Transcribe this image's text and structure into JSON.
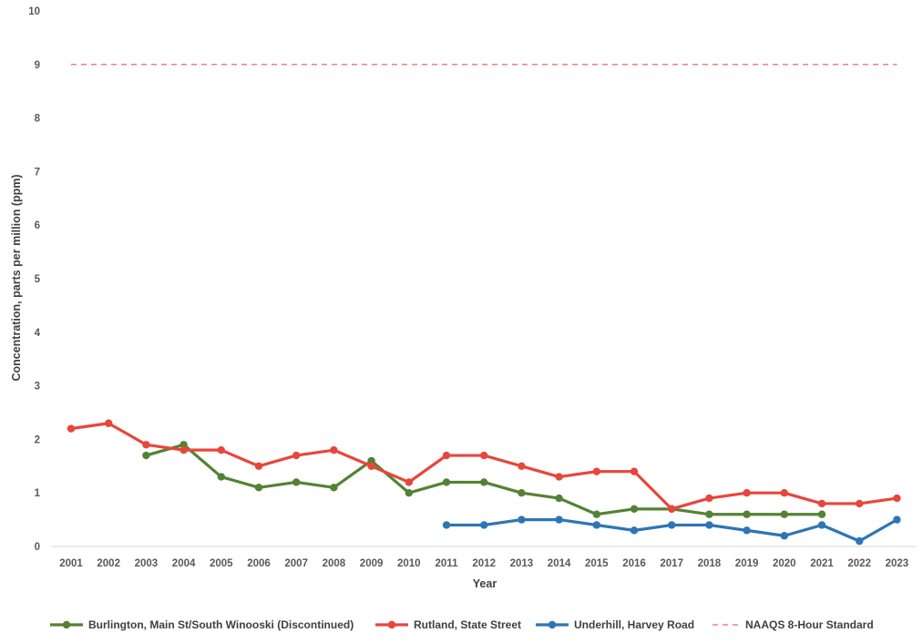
{
  "chart_data": {
    "type": "line",
    "title": "",
    "xlabel": "Year",
    "ylabel": "Concentration, parts per million (ppm)",
    "ylim": [
      0,
      10
    ],
    "y_ticks": [
      "0",
      "1",
      "2",
      "3",
      "4",
      "5",
      "6",
      "7",
      "8",
      "9",
      "10"
    ],
    "categories": [
      "2001",
      "2002",
      "2003",
      "2004",
      "2005",
      "2006",
      "2007",
      "2008",
      "2009",
      "2010",
      "2011",
      "2012",
      "2013",
      "2014",
      "2015",
      "2016",
      "2017",
      "2018",
      "2019",
      "2020",
      "2021",
      "2022",
      "2023"
    ],
    "grid": false,
    "legend_position": "bottom",
    "series": [
      {
        "name": "Burlington, Main St/South Winooski (Discontinued)",
        "color": "#548235",
        "style": "line-marker",
        "values": [
          null,
          null,
          1.7,
          1.9,
          1.3,
          1.1,
          1.2,
          1.1,
          1.6,
          1.0,
          1.2,
          1.2,
          1.0,
          0.9,
          0.6,
          0.7,
          0.7,
          0.6,
          0.6,
          0.6,
          0.6,
          null,
          null
        ]
      },
      {
        "name": "Rutland, State Street",
        "color": "#E8463B",
        "style": "line-marker",
        "values": [
          2.2,
          2.3,
          1.9,
          1.8,
          1.8,
          1.5,
          1.7,
          1.8,
          1.5,
          1.2,
          1.7,
          1.7,
          1.5,
          1.3,
          1.4,
          1.4,
          0.7,
          0.9,
          1.0,
          1.0,
          0.8,
          0.8,
          0.9
        ]
      },
      {
        "name": "Underhill, Harvey Road",
        "color": "#2E75B6",
        "style": "line-marker",
        "values": [
          null,
          null,
          null,
          null,
          null,
          null,
          null,
          null,
          null,
          null,
          0.4,
          0.4,
          0.5,
          0.5,
          0.4,
          0.3,
          0.4,
          0.4,
          0.3,
          0.2,
          0.4,
          0.1,
          0.5
        ]
      },
      {
        "name": "NAAQS 8-Hour Standard",
        "color": "#F08080",
        "style": "dashed",
        "values": [
          9,
          9,
          9,
          9,
          9,
          9,
          9,
          9,
          9,
          9,
          9,
          9,
          9,
          9,
          9,
          9,
          9,
          9,
          9,
          9,
          9,
          9,
          9
        ]
      }
    ]
  }
}
